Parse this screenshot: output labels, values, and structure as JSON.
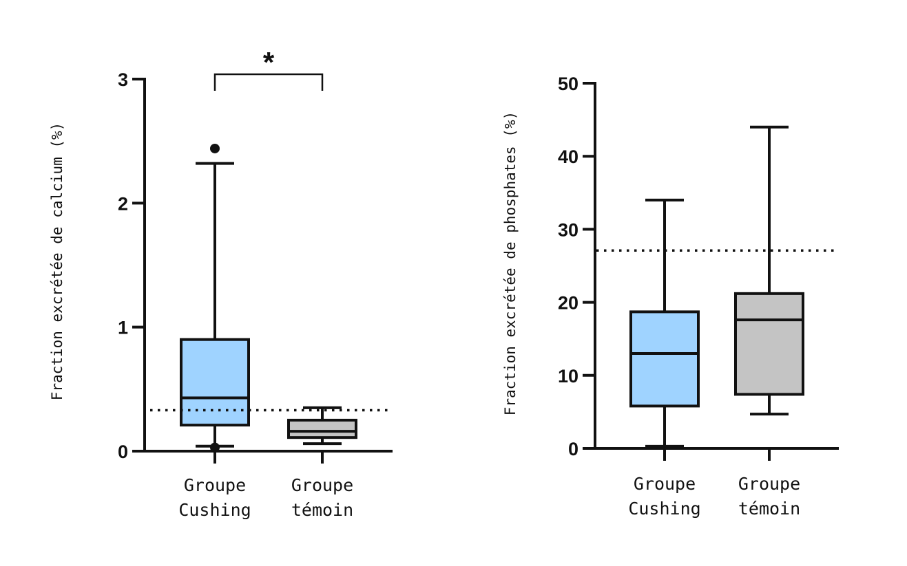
{
  "chart_data": [
    {
      "type": "box",
      "ylabel": "Fraction excrétée de calcium (%)",
      "ylim": [
        0,
        3
      ],
      "yticks": [
        0,
        1,
        2,
        3
      ],
      "categories": [
        {
          "line1": "Groupe",
          "line2": "Cushing"
        },
        {
          "line1": "Groupe",
          "line2": "témoin"
        }
      ],
      "boxes": [
        {
          "name": "Groupe Cushing",
          "color": "#9fd3ff",
          "min": 0.04,
          "q1": 0.21,
          "median": 0.43,
          "q3": 0.9,
          "max": 2.32,
          "outliers": [
            2.44,
            0.03
          ]
        },
        {
          "name": "Groupe témoin",
          "color": "#c4c4c4",
          "min": 0.06,
          "q1": 0.11,
          "median": 0.16,
          "q3": 0.25,
          "max": 0.35,
          "outliers": []
        }
      ],
      "reference_line": 0.33,
      "significance": {
        "label": "*",
        "between": [
          0,
          1
        ],
        "y": 3.0
      }
    },
    {
      "type": "box",
      "ylabel": "Fraction excrétée de phosphates (%)",
      "ylim": [
        0,
        50
      ],
      "yticks": [
        0,
        10,
        20,
        30,
        40,
        50
      ],
      "categories": [
        {
          "line1": "Groupe",
          "line2": "Cushing"
        },
        {
          "line1": "Groupe",
          "line2": "témoin"
        }
      ],
      "boxes": [
        {
          "name": "Groupe Cushing",
          "color": "#9fd3ff",
          "min": 0.3,
          "q1": 5.8,
          "median": 13.0,
          "q3": 18.7,
          "max": 34.0,
          "outliers": []
        },
        {
          "name": "Groupe témoin",
          "color": "#c4c4c4",
          "min": 4.7,
          "q1": 7.4,
          "median": 17.6,
          "q3": 21.2,
          "max": 44.0,
          "outliers": []
        }
      ],
      "reference_line": 27.1
    }
  ]
}
